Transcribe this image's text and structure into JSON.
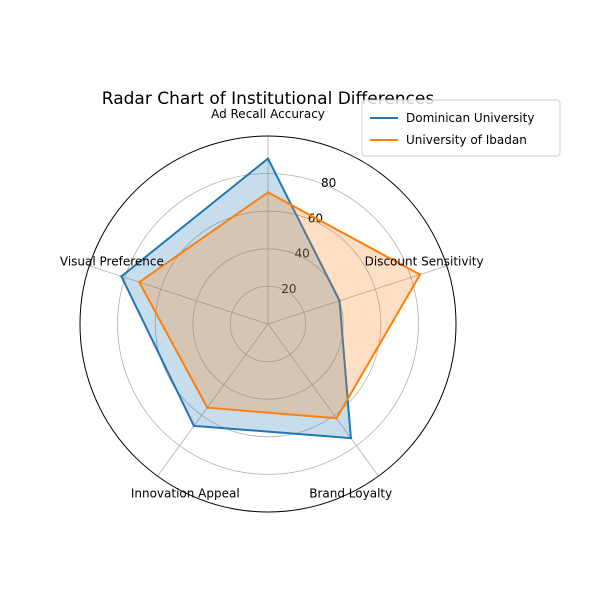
{
  "chart_data": {
    "type": "radar",
    "title": "Radar Chart of Institutional Differences",
    "categories": [
      "Ad Recall Accuracy",
      "Discount Sensitivity",
      "Brand Loyalty",
      "Innovation Appeal",
      "Visual Preference"
    ],
    "series": [
      {
        "name": "Dominican University",
        "values": [
          88,
          40,
          75,
          67,
          82
        ],
        "color": "#1f77b4"
      },
      {
        "name": "University of Ibadan",
        "values": [
          70,
          85,
          62,
          55,
          72
        ],
        "color": "#ff7f0e"
      }
    ],
    "rlim": [
      0,
      100
    ],
    "rticks": [
      20,
      40,
      60,
      80
    ],
    "rtick_labels": [
      "20",
      "40",
      "60",
      "80"
    ],
    "grid": true,
    "legend_position": "top-right"
  }
}
